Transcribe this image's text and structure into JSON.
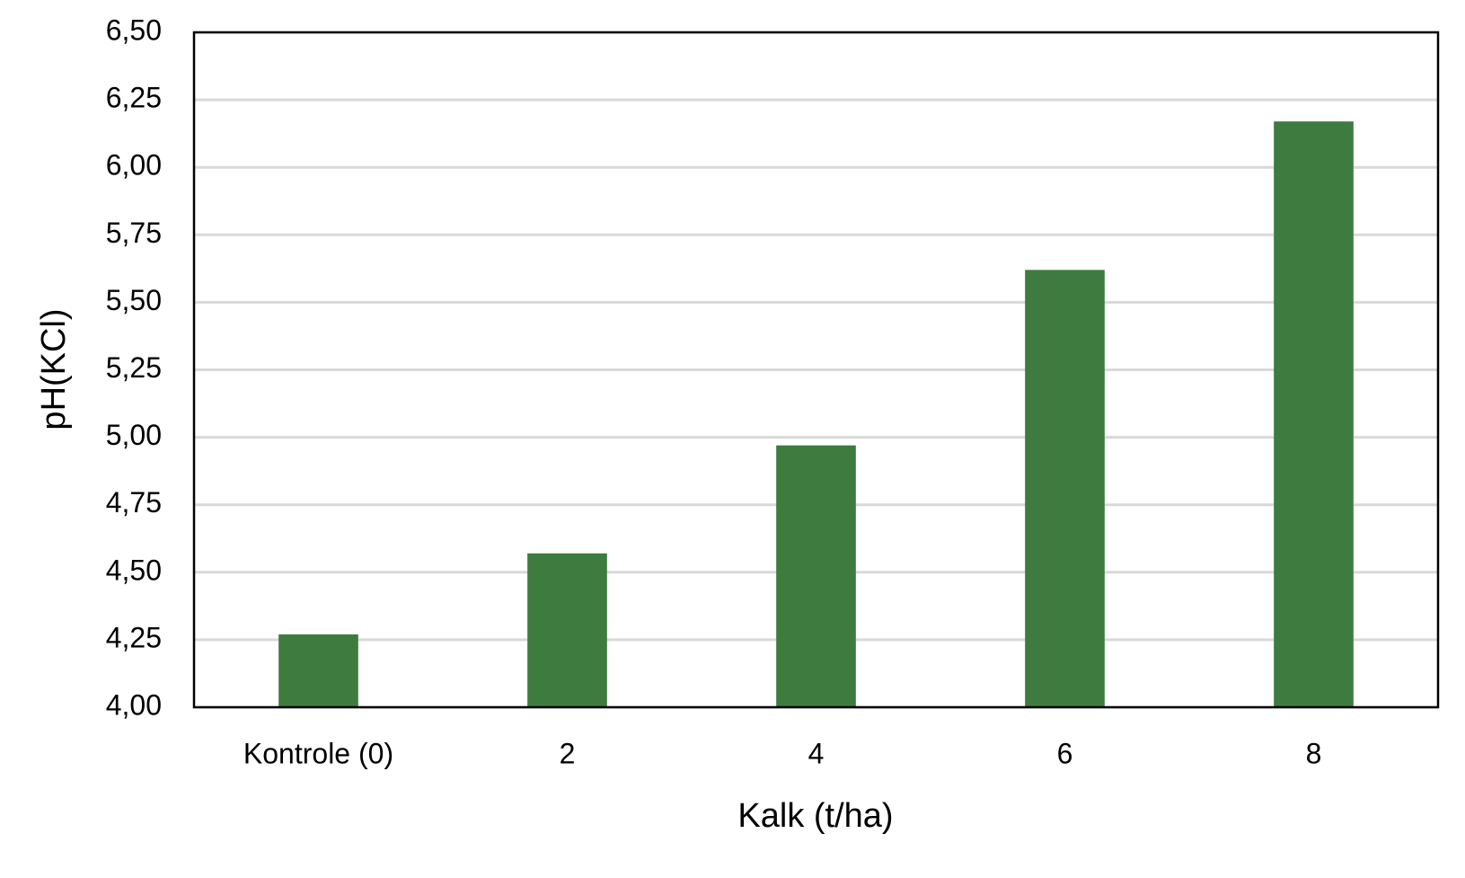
{
  "chart_data": {
    "type": "bar",
    "x_label": "Kalk (t/ha)",
    "y_label": "pH(KCl)",
    "categories": [
      "Kontrole (0)",
      "2",
      "4",
      "6",
      "8"
    ],
    "values": [
      4.27,
      4.57,
      4.97,
      5.62,
      6.17
    ],
    "color": "#3e7b3f",
    "ylim": [
      4,
      6.5
    ],
    "yticks": [
      {
        "value": 4,
        "label": "4,00"
      },
      {
        "value": 4.25,
        "label": "4,25"
      },
      {
        "value": 4.5,
        "label": "4,50"
      },
      {
        "value": 4.75,
        "label": "4,75"
      },
      {
        "value": 5,
        "label": "5,00"
      },
      {
        "value": 5.25,
        "label": "5,25"
      },
      {
        "value": 5.5,
        "label": "5,50"
      },
      {
        "value": 5.75,
        "label": "5,75"
      },
      {
        "value": 6,
        "label": "6,00"
      },
      {
        "value": 6.25,
        "label": "6,25"
      },
      {
        "value": 6.5,
        "label": "6,50"
      }
    ],
    "grid": true
  }
}
